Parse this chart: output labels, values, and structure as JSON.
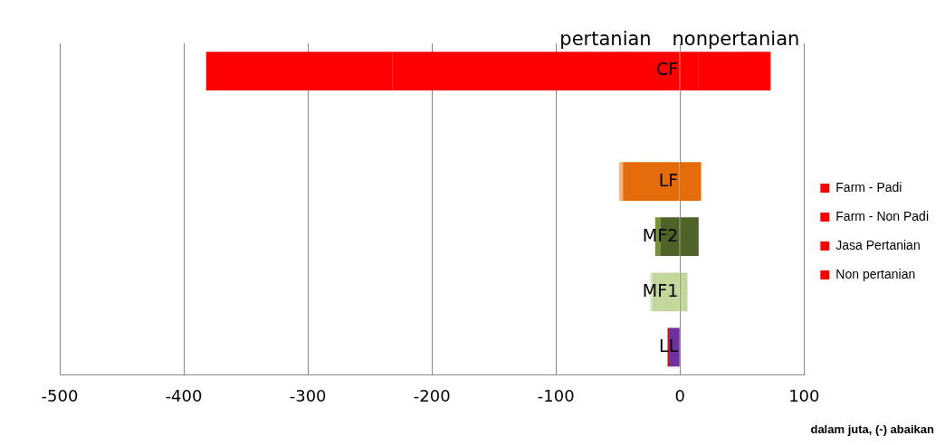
{
  "chart_data": {
    "type": "bar",
    "orientation": "horizontal",
    "stacked": true,
    "categories": [
      "CF",
      null,
      "LF",
      "MF2",
      "MF1",
      "LL"
    ],
    "series": [
      {
        "name": "Farm - Padi",
        "color": "#ff0000",
        "colors": [
          "#ff0000",
          "#ff0000",
          "#e46c0a",
          "#4f6228",
          "#c3d69b",
          "#7030a0"
        ],
        "values": [
          -232,
          null,
          -46,
          -16,
          -22,
          -9
        ]
      },
      {
        "name": "Farm - Non Padi",
        "color": "#ff0000",
        "colors": [
          "#ff0000",
          "#ff0000",
          "#f4b183",
          "#76923c",
          "#d7e4bd",
          "#c00000"
        ],
        "values": [
          -150,
          null,
          -3,
          -4,
          -2,
          -1
        ]
      },
      {
        "name": "Jasa Pertanian",
        "color": "#ff0000",
        "colors": [
          "#ff0000",
          "#ff0000",
          "#e46c0a",
          "#4f6228",
          "#c3d69b",
          "#7030a0"
        ],
        "values": [
          15,
          null,
          null,
          null,
          6,
          null
        ]
      },
      {
        "name": "Non pertanian",
        "color": "#ff0000",
        "colors": [
          "#ff0000",
          "#ff0000",
          "#e46c0a",
          "#4f6228",
          "#c3d69b",
          "#7030a0"
        ],
        "values": [
          58,
          null,
          17,
          15,
          null,
          null
        ]
      }
    ],
    "xlim": [
      -500,
      100
    ],
    "xticks": [
      -500,
      -400,
      -300,
      -200,
      -100,
      0,
      100
    ],
    "grid": "x",
    "legend": "right",
    "annotations": [
      {
        "text": "pertanian",
        "x": -60,
        "y": "CF"
      },
      {
        "text": "nonpertanian",
        "x": 45,
        "y": "CF"
      },
      "dalam juta, (-) abaikan"
    ]
  }
}
